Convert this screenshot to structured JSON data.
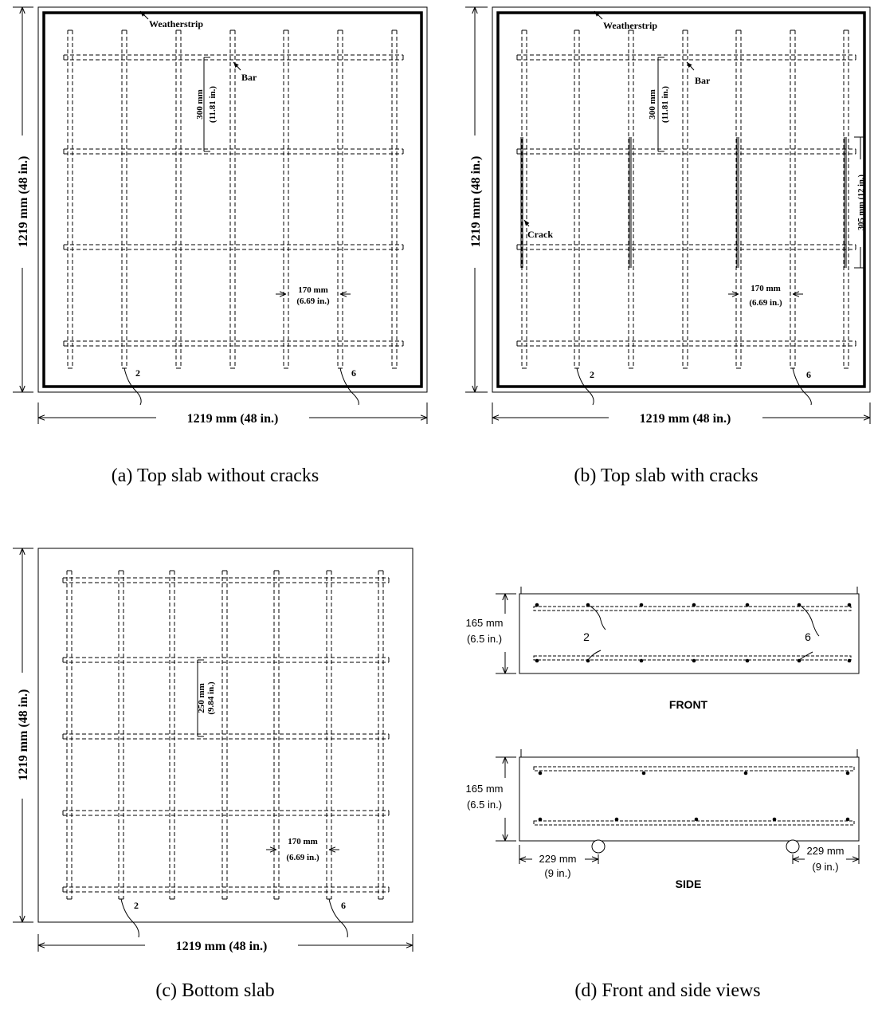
{
  "panel_a": {
    "caption": "(a) Top slab without cracks",
    "weatherstrip": "Weatherstrip",
    "bar": "Bar",
    "bar_spacing_mm": "300 mm",
    "bar_spacing_in": "(11.81 in.)",
    "col_spacing_mm": "170 mm",
    "col_spacing_in": "(6.69 in.)",
    "bar_label_left": "2",
    "bar_label_right": "6",
    "width_dim": "1219 mm (48 in.)",
    "height_dim": "1219 mm (48 in.)"
  },
  "panel_b": {
    "caption": "(b) Top slab with cracks",
    "weatherstrip": "Weatherstrip",
    "bar": "Bar",
    "crack": "Crack",
    "bar_spacing_mm": "300 mm",
    "bar_spacing_in": "(11.81 in.)",
    "crack_length": "305 mm (12 in.)",
    "col_spacing_mm": "170 mm",
    "col_spacing_in": "(6.69 in.)",
    "bar_label_left": "2",
    "bar_label_right": "6",
    "width_dim": "1219 mm (48 in.)",
    "height_dim": "1219 mm (48 in.)"
  },
  "panel_c": {
    "caption": "(c) Bottom slab",
    "bar_spacing_mm": "250 mm",
    "bar_spacing_in": "(9.84 in.)",
    "col_spacing_mm": "170 mm",
    "col_spacing_in": "(6.69 in.)",
    "bar_label_left": "2",
    "bar_label_right": "6",
    "width_dim": "1219 mm (48 in.)",
    "height_dim": "1219 mm (48 in.)"
  },
  "panel_d": {
    "caption": "(d) Front and side views",
    "front_label": "FRONT",
    "side_label": "SIDE",
    "front_depth_mm": "165 mm",
    "front_depth_in": "(6.5 in.)",
    "side_depth_mm": "165 mm",
    "side_depth_in": "(6.5 in.)",
    "bar_label_left": "2",
    "bar_label_right": "6",
    "support_left_mm": "229 mm",
    "support_left_in": "(9 in.)",
    "support_right_mm": "229 mm",
    "support_right_in": "(9 in.)"
  }
}
